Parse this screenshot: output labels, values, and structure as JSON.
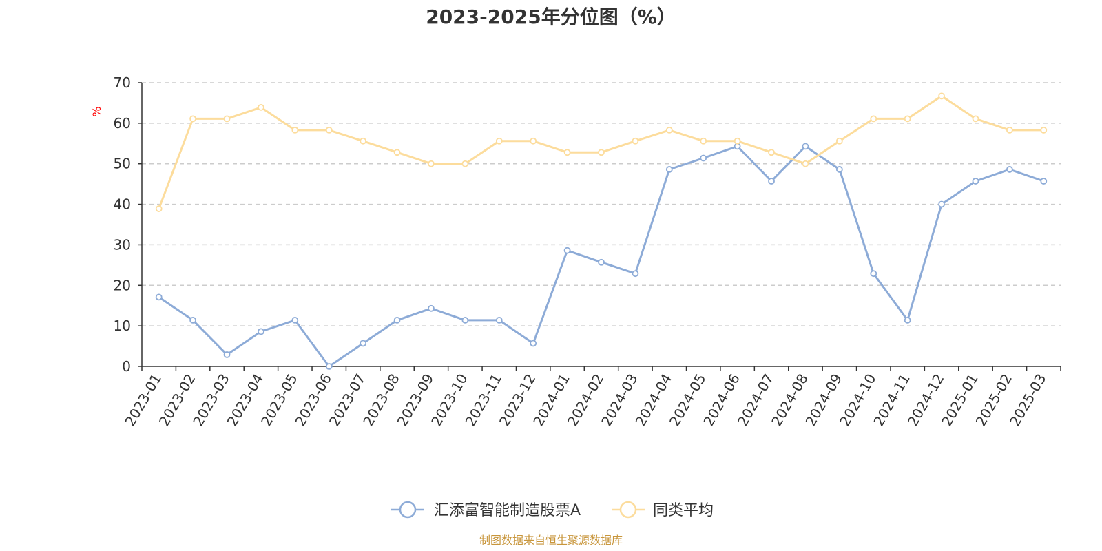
{
  "chart_data": {
    "type": "line",
    "title": "2023-2025年分位图（%）",
    "y_unit": "%",
    "ylim": [
      0,
      70
    ],
    "yticks": [
      0,
      10,
      20,
      30,
      40,
      50,
      60,
      70
    ],
    "grid": true,
    "legend_position": "bottom",
    "categories": [
      "2023-01",
      "2023-02",
      "2023-03",
      "2023-04",
      "2023-05",
      "2023-06",
      "2023-07",
      "2023-08",
      "2023-09",
      "2023-10",
      "2023-11",
      "2023-12",
      "2024-01",
      "2024-02",
      "2024-03",
      "2024-04",
      "2024-05",
      "2024-06",
      "2024-07",
      "2024-08",
      "2024-09",
      "2024-10",
      "2024-11",
      "2024-12",
      "2025-01",
      "2025-02",
      "2025-03"
    ],
    "series": [
      {
        "name": "汇添富智能制造股票A",
        "color": "#8dabd7",
        "values": [
          17.1,
          11.4,
          2.9,
          8.6,
          11.4,
          0.0,
          5.7,
          11.4,
          14.3,
          11.4,
          11.4,
          5.7,
          28.6,
          25.7,
          22.9,
          48.6,
          51.4,
          54.3,
          45.7,
          54.3,
          48.6,
          22.9,
          11.4,
          40.0,
          45.7,
          48.6,
          45.7
        ]
      },
      {
        "name": "同类平均",
        "color": "#fcdc9c",
        "values": [
          38.9,
          61.1,
          61.1,
          63.9,
          58.3,
          58.3,
          55.6,
          52.8,
          50.0,
          50.0,
          55.6,
          55.6,
          52.8,
          52.8,
          55.6,
          58.3,
          55.6,
          55.6,
          52.8,
          50.0,
          55.6,
          61.1,
          61.1,
          66.7,
          61.1,
          58.3,
          58.3
        ]
      }
    ]
  },
  "source_text": "制图数据来自恒生聚源数据库",
  "colors": {
    "unit_label": "#ff0000",
    "source_text": "#c8963c",
    "grid": "#cccccc",
    "axis": "#333333"
  }
}
